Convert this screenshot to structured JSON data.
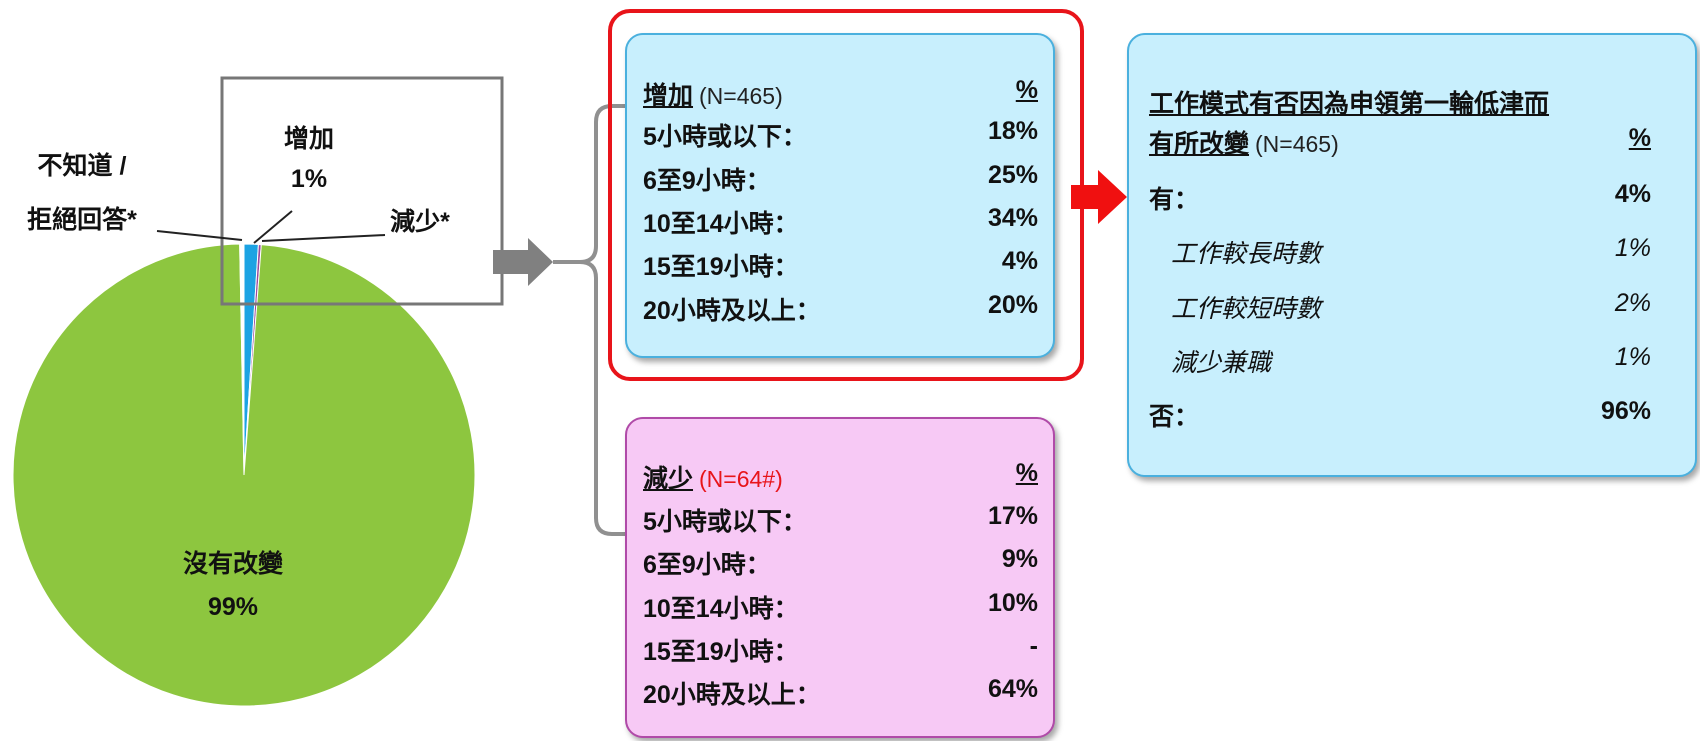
{
  "chart_data": {
    "type": "pie",
    "categories": [
      "增加",
      "減少*",
      "沒有改變",
      "不知道 /\n拒絕回答*"
    ],
    "values": [
      1,
      0.2,
      99,
      0.3
    ],
    "value_labels": [
      "1%",
      null,
      "99%",
      null
    ],
    "colors": [
      "#1ca3e3",
      "#9a4a9e",
      "#8dc63f",
      "#ffffff"
    ]
  },
  "increase_box": {
    "title": "增加",
    "note": "(N=465)",
    "pct_header": "%",
    "rows": [
      [
        "5小時或以下：",
        "18%"
      ],
      [
        "6至9小時：",
        "25%"
      ],
      [
        "10至14小時：",
        "34%"
      ],
      [
        "15至19小時：",
        "4%"
      ],
      [
        "20小時及以上：",
        "20%"
      ]
    ]
  },
  "decrease_box": {
    "title": "減少",
    "note": "(N=64#)",
    "pct_header": "%",
    "rows": [
      [
        "5小時或以下：",
        "17%"
      ],
      [
        "6至9小時：",
        "9%"
      ],
      [
        "10至14小時：",
        "10%"
      ],
      [
        "15至19小時：",
        "-"
      ],
      [
        "20小時及以上：",
        "64%"
      ]
    ]
  },
  "result_box": {
    "title_lines": [
      "工作模式有否因為申領第一輪低津而",
      "有所改變"
    ],
    "note": "(N=465)",
    "pct_header": "%",
    "rows": [
      [
        "有：",
        "4%"
      ],
      [
        "工作較長時數",
        "1%"
      ],
      [
        "工作較短時數",
        "2%"
      ],
      [
        "減少兼職",
        "1%"
      ],
      [
        "否：",
        "96%"
      ]
    ]
  }
}
